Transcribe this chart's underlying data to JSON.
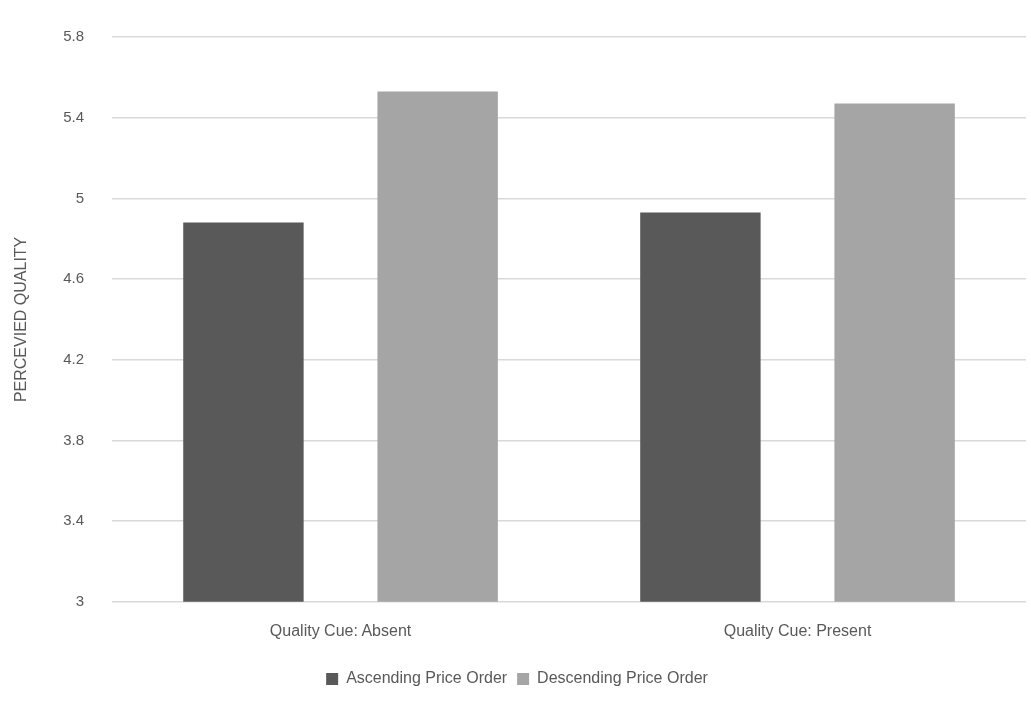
{
  "chart_data": {
    "type": "bar",
    "ylabel": "PERCEVIED QUALITY",
    "categories": [
      "Quality Cue: Absent",
      "Quality Cue: Present"
    ],
    "series": [
      {
        "name": "Ascending Price Order",
        "color": "#595959",
        "values": [
          4.88,
          4.93
        ]
      },
      {
        "name": "Descending Price Order",
        "color": "#a5a5a5",
        "values": [
          5.53,
          5.47
        ]
      }
    ],
    "ylim": [
      3,
      5.8
    ],
    "yticks": [
      3,
      3.4,
      3.8,
      4.2,
      4.6,
      5,
      5.4,
      5.8
    ],
    "grid": "y",
    "legend": "bottom"
  }
}
